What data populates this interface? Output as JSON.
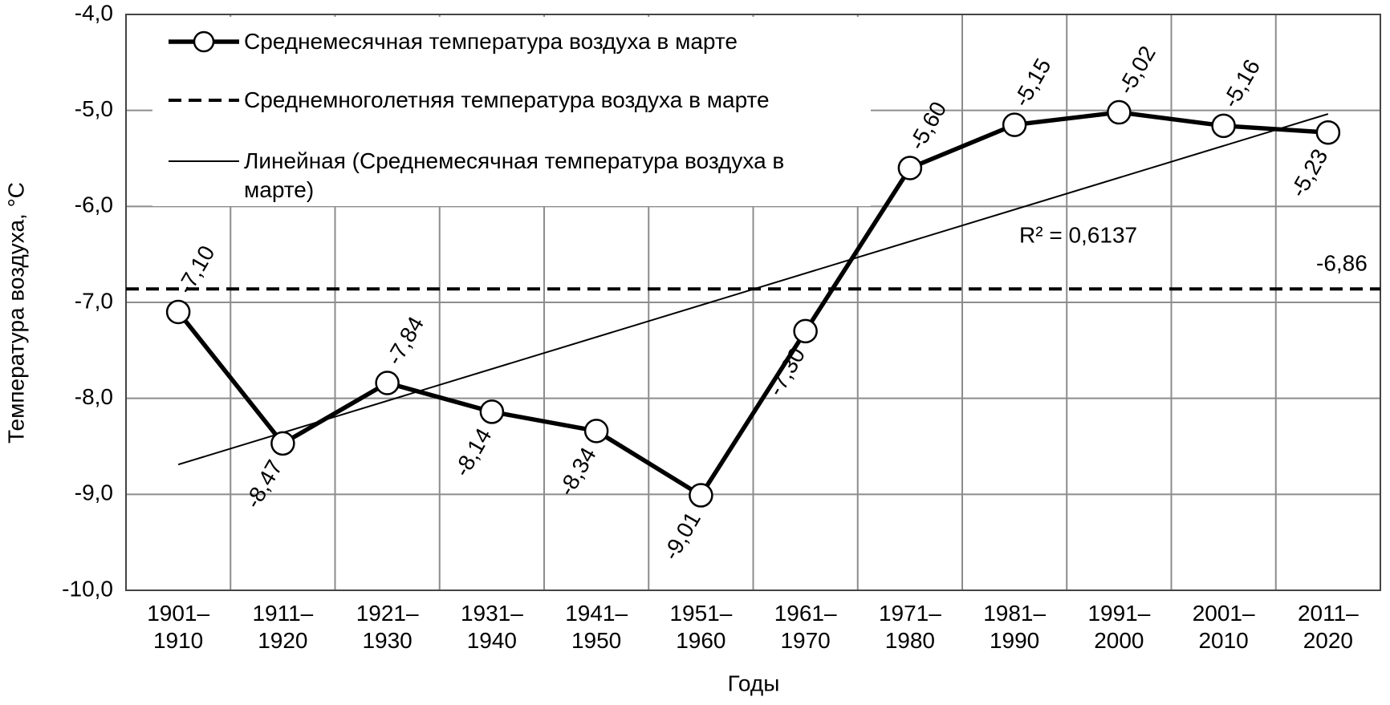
{
  "chart_data": {
    "type": "line",
    "y_label": "Температура воздуха, °С",
    "x_label": "Годы",
    "categories": [
      "1901–1910",
      "1911–1920",
      "1921–1930",
      "1931–1940",
      "1941–1950",
      "1951–1960",
      "1961–1970",
      "1971–1980",
      "1981–1990",
      "1991–2000",
      "2001–2010",
      "2011–2020"
    ],
    "series": [
      {
        "name": "Среднемесячная температура воздуха в марте",
        "color": "#000000",
        "values": [
          -7.1,
          -8.47,
          -7.84,
          -8.14,
          -8.34,
          -9.01,
          -7.3,
          -5.6,
          -5.15,
          -5.02,
          -5.16,
          -5.23
        ],
        "value_labels": [
          "-7,10",
          "-8,47",
          "-7,84",
          "-8,14",
          "-8,34",
          "-9,01",
          "-7,30",
          "-5,60",
          "-5,15",
          "-5,02",
          "-5,16",
          "-5,23"
        ]
      }
    ],
    "mean": {
      "name": "Среднемноголетняя температура воздуха в марте",
      "value": -6.86,
      "label": "-6,86"
    },
    "trend": {
      "name": "Линейная (Среднемесячная температура воздуха в марте)",
      "annotation": "R² = 0,6137"
    },
    "ylim": [
      -10,
      -4
    ],
    "yticks": [
      {
        "value": -10,
        "label": "-10,0"
      },
      {
        "value": -9,
        "label": "-9,0"
      },
      {
        "value": -8,
        "label": "-8,0"
      },
      {
        "value": -7,
        "label": "-7,0"
      },
      {
        "value": -6,
        "label": "-6,0"
      },
      {
        "value": -5,
        "label": "-5,0"
      },
      {
        "value": -4,
        "label": "-4,0"
      }
    ],
    "grid": true
  }
}
